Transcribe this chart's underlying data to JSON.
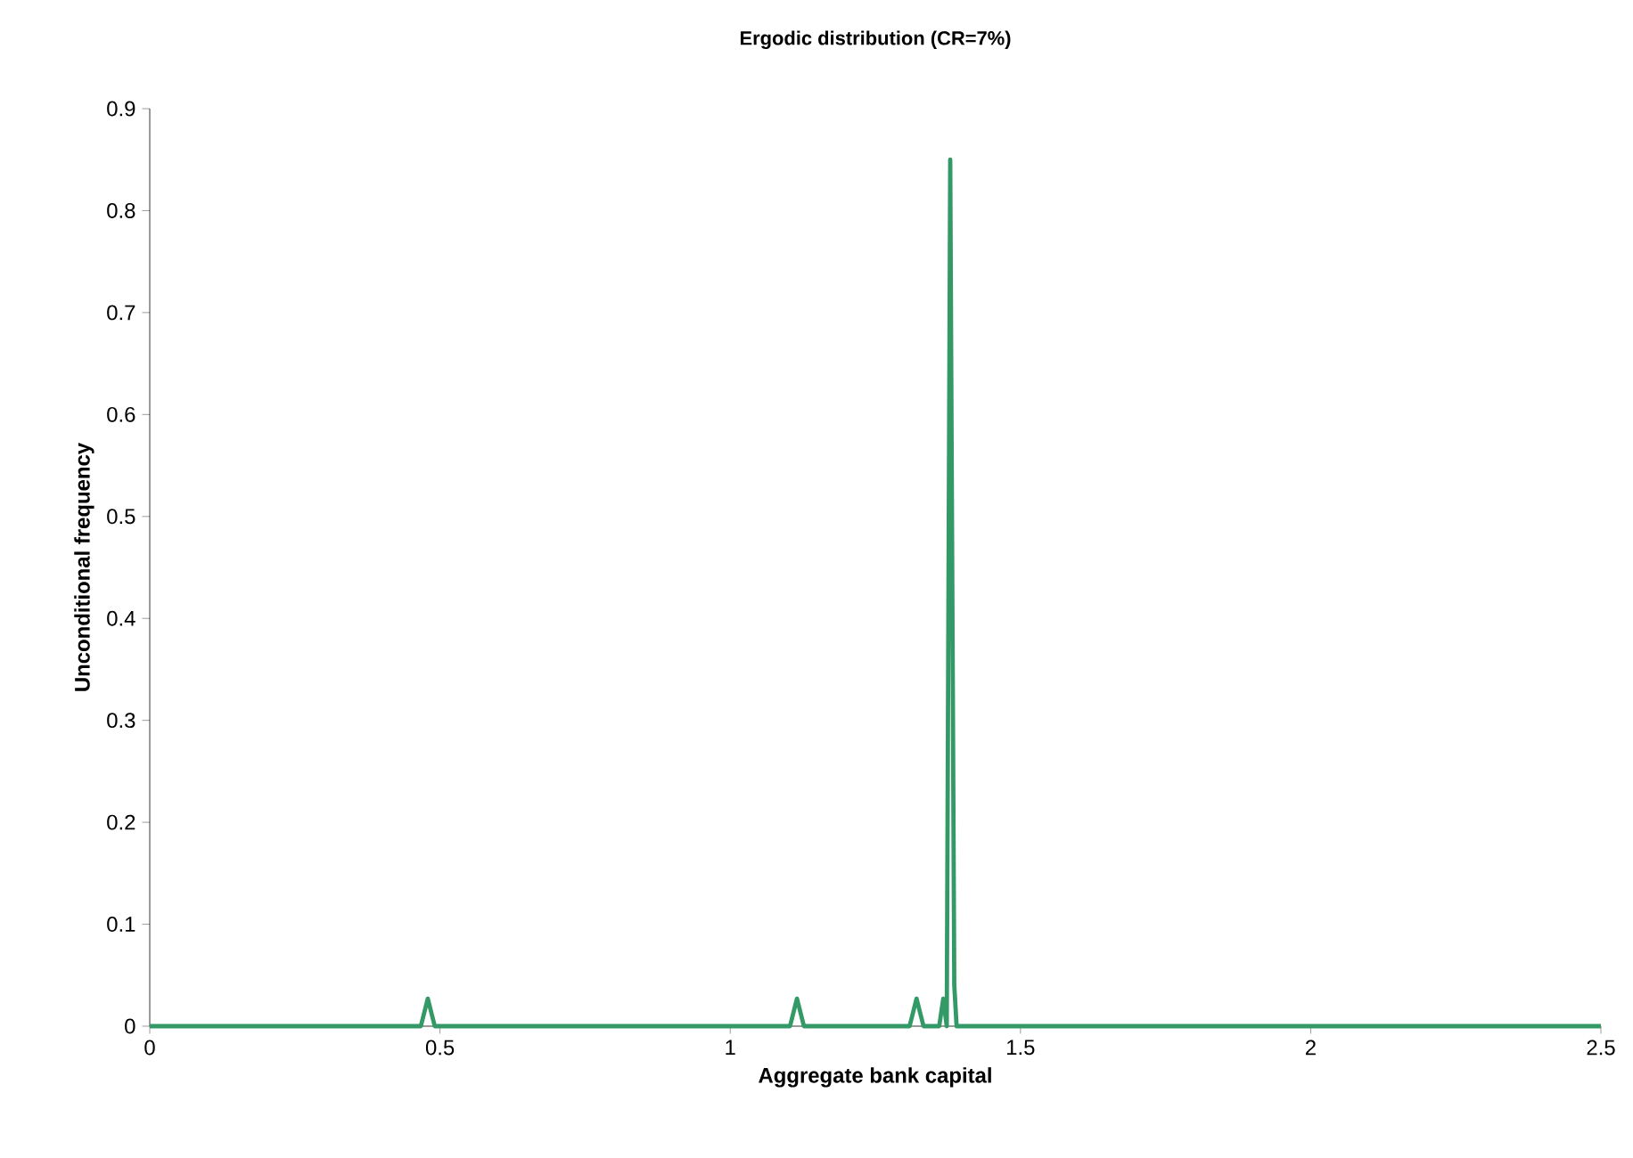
{
  "chart_data": {
    "type": "line",
    "title": "Ergodic distribution (CR=7%)",
    "xlabel": "Aggregate bank capital",
    "ylabel": "Unconditional frequency",
    "xlim": [
      0,
      2.5
    ],
    "xticks": [
      0,
      0.5,
      1,
      1.5,
      2,
      2.5
    ],
    "ylim": [
      0,
      0.9
    ],
    "yticks": [
      0,
      0.1,
      0.2,
      0.3,
      0.4,
      0.5,
      0.6,
      0.7,
      0.8,
      0.9
    ],
    "grid": false,
    "marker": "none",
    "line_style": "solid",
    "series": [
      {
        "color": "#339966",
        "x": [
          0,
          0.467,
          0.479,
          0.491,
          1.103,
          1.115,
          1.127,
          1.309,
          1.321,
          1.333,
          1.36,
          1.367,
          1.373,
          1.379,
          1.386,
          1.39,
          2.5
        ],
        "values": [
          0,
          0,
          0.027,
          0,
          0,
          0.027,
          0,
          0,
          0.027,
          0,
          0,
          0.027,
          0,
          0.85,
          0.04,
          0,
          0
        ]
      }
    ]
  }
}
